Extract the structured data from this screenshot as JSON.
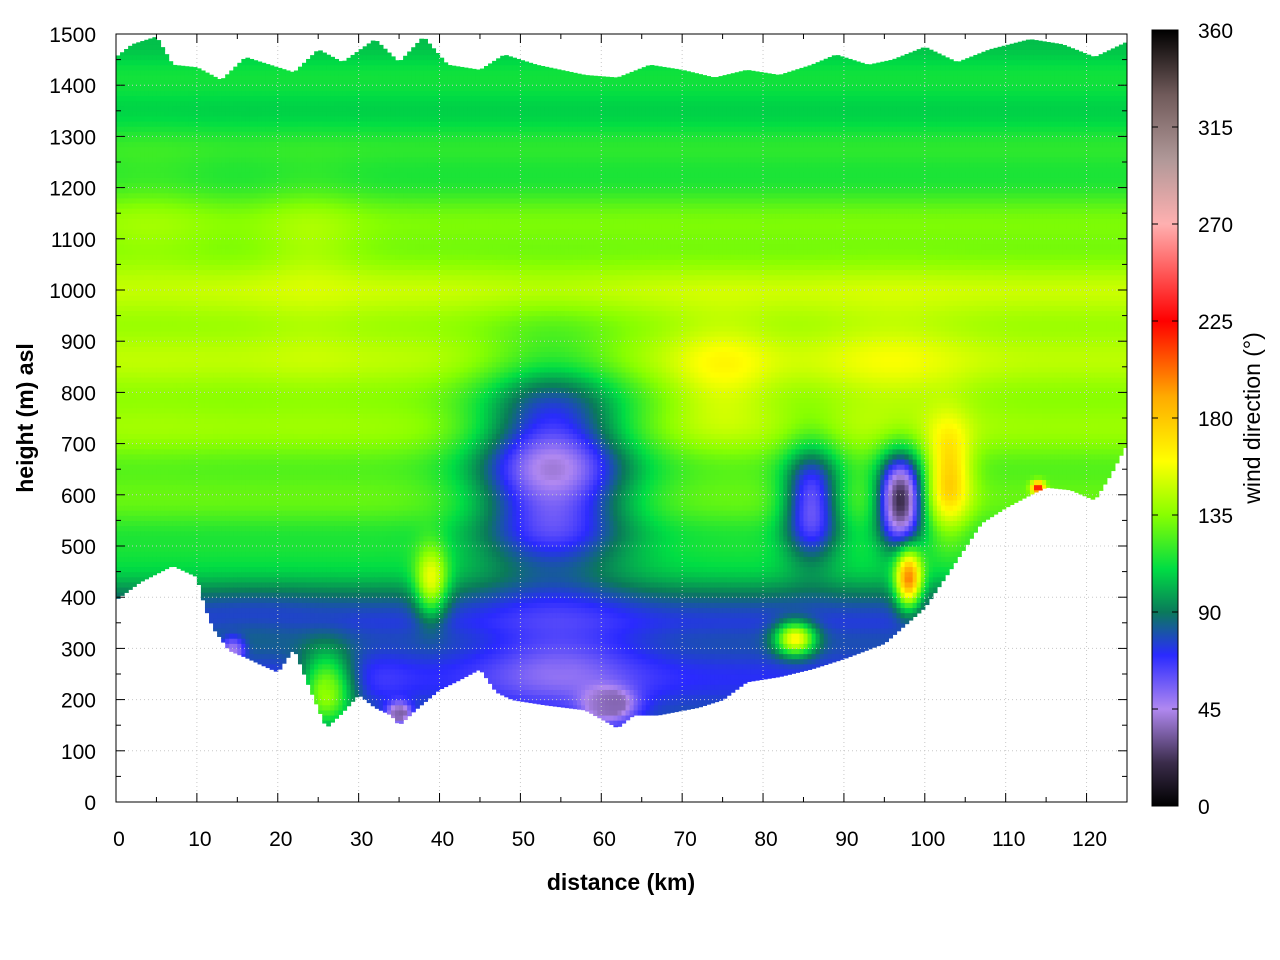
{
  "chart_data": {
    "type": "heatmap",
    "title": "",
    "xlabel": "distance (km)",
    "ylabel": "height (m) asl",
    "colorbar_label": "wind direction (°)",
    "xlim": [
      0,
      125
    ],
    "ylim": [
      0,
      1500
    ],
    "clim": [
      0,
      360
    ],
    "x_ticks": [
      0,
      10,
      20,
      30,
      40,
      50,
      60,
      70,
      80,
      90,
      100,
      110,
      120
    ],
    "y_ticks": [
      0,
      100,
      200,
      300,
      400,
      500,
      600,
      700,
      800,
      900,
      1000,
      1100,
      1200,
      1300,
      1400,
      1500
    ],
    "colorbar_ticks": [
      0,
      45,
      90,
      135,
      180,
      225,
      270,
      315,
      360
    ],
    "grid": true,
    "colormap": [
      {
        "value": 0,
        "color": "#000000"
      },
      {
        "value": 20,
        "color": "#3a2c4a"
      },
      {
        "value": 45,
        "color": "#b088f0"
      },
      {
        "value": 70,
        "color": "#2a2aff"
      },
      {
        "value": 90,
        "color": "#0a7a5a"
      },
      {
        "value": 110,
        "color": "#00dd44"
      },
      {
        "value": 135,
        "color": "#88ff00"
      },
      {
        "value": 160,
        "color": "#ffff00"
      },
      {
        "value": 190,
        "color": "#ffaa00"
      },
      {
        "value": 225,
        "color": "#ff0000"
      },
      {
        "value": 270,
        "color": "#ffb0b0"
      },
      {
        "value": 300,
        "color": "#b09898"
      },
      {
        "value": 330,
        "color": "#705a5a"
      },
      {
        "value": 360,
        "color": "#000000"
      }
    ],
    "terrain_height": [
      [
        0,
        395
      ],
      [
        3,
        430
      ],
      [
        7,
        462
      ],
      [
        10,
        440
      ],
      [
        11,
        380
      ],
      [
        12,
        340
      ],
      [
        14,
        296
      ],
      [
        16,
        283
      ],
      [
        18,
        268
      ],
      [
        20,
        254
      ],
      [
        22,
        300
      ],
      [
        24,
        220
      ],
      [
        26,
        145
      ],
      [
        28,
        175
      ],
      [
        30,
        210
      ],
      [
        32,
        185
      ],
      [
        34,
        170
      ],
      [
        35,
        150
      ],
      [
        37,
        180
      ],
      [
        40,
        220
      ],
      [
        42,
        235
      ],
      [
        45,
        260
      ],
      [
        47,
        215
      ],
      [
        49,
        200
      ],
      [
        53,
        190
      ],
      [
        58,
        180
      ],
      [
        62,
        145
      ],
      [
        64,
        170
      ],
      [
        67,
        170
      ],
      [
        72,
        185
      ],
      [
        75,
        200
      ],
      [
        78,
        235
      ],
      [
        82,
        245
      ],
      [
        86,
        260
      ],
      [
        90,
        280
      ],
      [
        95,
        310
      ],
      [
        100,
        380
      ],
      [
        103,
        450
      ],
      [
        107,
        545
      ],
      [
        110,
        575
      ],
      [
        113,
        600
      ],
      [
        115,
        615
      ],
      [
        118,
        610
      ],
      [
        121,
        590
      ],
      [
        123,
        640
      ],
      [
        125,
        700
      ]
    ],
    "model_top": [
      [
        0,
        1455
      ],
      [
        2,
        1480
      ],
      [
        5,
        1495
      ],
      [
        7,
        1440
      ],
      [
        10,
        1435
      ],
      [
        13,
        1410
      ],
      [
        16,
        1455
      ],
      [
        19,
        1440
      ],
      [
        22,
        1425
      ],
      [
        25,
        1470
      ],
      [
        28,
        1445
      ],
      [
        32,
        1490
      ],
      [
        35,
        1445
      ],
      [
        38,
        1495
      ],
      [
        41,
        1440
      ],
      [
        45,
        1430
      ],
      [
        48,
        1460
      ],
      [
        52,
        1440
      ],
      [
        55,
        1430
      ],
      [
        58,
        1420
      ],
      [
        62,
        1415
      ],
      [
        66,
        1440
      ],
      [
        70,
        1430
      ],
      [
        74,
        1415
      ],
      [
        78,
        1430
      ],
      [
        82,
        1420
      ],
      [
        86,
        1440
      ],
      [
        89,
        1460
      ],
      [
        93,
        1440
      ],
      [
        96,
        1450
      ],
      [
        100,
        1475
      ],
      [
        104,
        1445
      ],
      [
        108,
        1470
      ],
      [
        113,
        1490
      ],
      [
        117,
        1480
      ],
      [
        121,
        1455
      ],
      [
        125,
        1485
      ]
    ],
    "background_field": {
      "description_values": [
        {
          "height": 350,
          "direction": 75
        },
        {
          "height": 500,
          "direction": 118
        },
        {
          "height": 800,
          "direction": 140
        },
        {
          "height": 1000,
          "direction": 145
        },
        {
          "height": 1250,
          "direction": 115
        },
        {
          "height": 1450,
          "direction": 108
        }
      ]
    },
    "anomalies": [
      {
        "x": 54,
        "y": 640,
        "rx": 12,
        "ry": 260,
        "direction": 45
      },
      {
        "x": 55,
        "y": 260,
        "rx": 12,
        "ry": 120,
        "direction": 55
      },
      {
        "x": 61,
        "y": 190,
        "rx": 4,
        "ry": 40,
        "direction": 25
      },
      {
        "x": 86,
        "y": 580,
        "rx": 4.5,
        "ry": 140,
        "direction": 55
      },
      {
        "x": 97,
        "y": 590,
        "rx": 3.5,
        "ry": 110,
        "direction": 15
      },
      {
        "x": 98,
        "y": 440,
        "rx": 2,
        "ry": 70,
        "direction": 200
      },
      {
        "x": 103,
        "y": 640,
        "rx": 3.5,
        "ry": 130,
        "direction": 180
      },
      {
        "x": 96,
        "y": 860,
        "rx": 12,
        "ry": 150,
        "direction": 155
      },
      {
        "x": 75,
        "y": 840,
        "rx": 8,
        "ry": 140,
        "direction": 160
      },
      {
        "x": 39,
        "y": 440,
        "rx": 2.5,
        "ry": 90,
        "direction": 155
      },
      {
        "x": 84,
        "y": 320,
        "rx": 3,
        "ry": 40,
        "direction": 158
      },
      {
        "x": 26,
        "y": 220,
        "rx": 4,
        "ry": 90,
        "direction": 140
      },
      {
        "x": 17,
        "y": 330,
        "rx": 9,
        "ry": 80,
        "direction": 80
      },
      {
        "x": 33,
        "y": 240,
        "rx": 5,
        "ry": 80,
        "direction": 70
      },
      {
        "x": 14.5,
        "y": 300,
        "rx": 1.5,
        "ry": 25,
        "direction": 20
      },
      {
        "x": 35,
        "y": 175,
        "rx": 1.8,
        "ry": 25,
        "direction": 20
      },
      {
        "x": 114,
        "y": 615,
        "rx": 1,
        "ry": 15,
        "direction": 225
      },
      {
        "x": 4,
        "y": 980,
        "rx": 10,
        "ry": 250,
        "direction": 143
      },
      {
        "x": 24,
        "y": 1000,
        "rx": 8,
        "ry": 200,
        "direction": 148
      }
    ]
  }
}
